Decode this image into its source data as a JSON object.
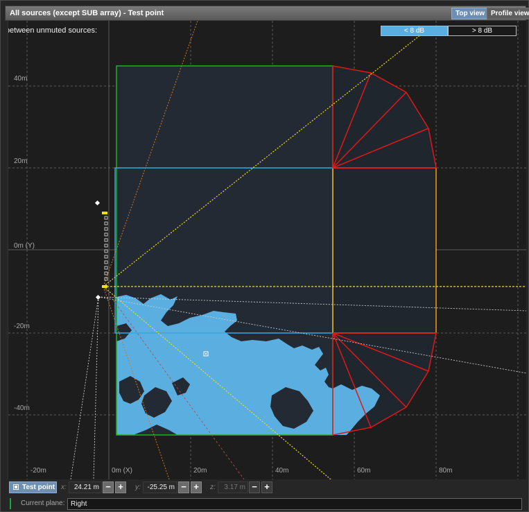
{
  "window": {
    "title": "All sources (except SUB array) - Test point",
    "view_buttons": {
      "top_view": "Top view",
      "profile_view": "Profile view"
    },
    "active_view": "Top view"
  },
  "legend": {
    "label": "SPL difference between unmuted sources:",
    "low": "< 8 dB",
    "high": "> 8 dB",
    "low_color": "#5aafe0",
    "high_color": "#1a1a1a"
  },
  "axes": {
    "y_labels": [
      "40m",
      "20m",
      "0m (Y)",
      "-20m",
      "-40m"
    ],
    "x_labels": [
      "-20m",
      "0m (X)",
      "20m",
      "40m",
      "60m",
      "80m"
    ]
  },
  "colors": {
    "zone_outer": "#22b022",
    "zone_inner": "#3aa6e0",
    "zone_right": "#f0a010",
    "fan_zones": "#e01818",
    "coverage_fill": "#5aafe0",
    "line_yellow": "#e8e020",
    "line_orange": "#d07a20"
  },
  "test_point": {
    "button_label": "Test point",
    "x_label": "x:",
    "x_value": "24.21 m",
    "y_label": "y:",
    "y_value": "-25.25 m",
    "z_label": "z:",
    "z_value": "3.17 m",
    "minus": "−",
    "plus": "+"
  },
  "plane": {
    "label": "Current plane:",
    "value": "Right"
  }
}
